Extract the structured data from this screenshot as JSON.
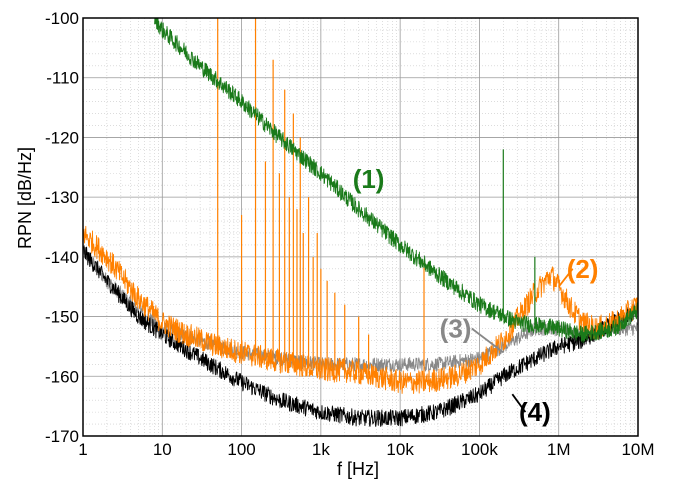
{
  "chart_data": {
    "type": "line",
    "xlabel": "f [Hz]",
    "ylabel": "RPN [dB/Hz]",
    "xscale": "log",
    "xlim": [
      1,
      10000000
    ],
    "ylim": [
      -170,
      -100
    ],
    "grid": true,
    "x_tick_labels": [
      "1",
      "10",
      "100",
      "1k",
      "10k",
      "100k",
      "1M",
      "10M"
    ],
    "y_tick_labels": [
      "-100",
      "-110",
      "-120",
      "-130",
      "-140",
      "-150",
      "-160",
      "-170"
    ],
    "series": [
      {
        "name": "(1)",
        "color": "#1a7a1a",
        "x": [
          8,
          10,
          30,
          100,
          300,
          1000,
          3000,
          10000,
          30000,
          100000,
          300000,
          1000000,
          2000000,
          5000000,
          10000000
        ],
        "y": [
          -100,
          -102,
          -108,
          -114,
          -120,
          -126,
          -132,
          -138,
          -143,
          -148,
          -151,
          -152,
          -153,
          -152,
          -149
        ],
        "spikes": [
          {
            "x": 200000,
            "y": -122
          },
          {
            "x": 500000,
            "y": -140
          }
        ]
      },
      {
        "name": "(2)",
        "color": "#ff8000",
        "x": [
          1,
          2,
          5,
          10,
          20,
          50,
          100,
          200,
          500,
          1000,
          2000,
          5000,
          10000,
          20000,
          50000,
          100000,
          200000,
          500000,
          800000,
          1000000,
          1500000,
          2000000,
          3000000,
          5000000,
          10000000
        ],
        "y": [
          -136,
          -140,
          -147,
          -151,
          -153,
          -155,
          -156,
          -157,
          -158,
          -159,
          -159,
          -160,
          -161,
          -161,
          -160,
          -158,
          -154,
          -146,
          -143,
          -145,
          -149,
          -151,
          -152,
          -151,
          -148
        ],
        "spikes": [
          {
            "x": 50,
            "y": -100
          },
          {
            "x": 100,
            "y": -133
          },
          {
            "x": 150,
            "y": -100
          },
          {
            "x": 200,
            "y": -124
          },
          {
            "x": 250,
            "y": -107
          },
          {
            "x": 300,
            "y": -126
          },
          {
            "x": 350,
            "y": -112
          },
          {
            "x": 400,
            "y": -130
          },
          {
            "x": 450,
            "y": -116
          },
          {
            "x": 500,
            "y": -132
          },
          {
            "x": 550,
            "y": -120
          },
          {
            "x": 600,
            "y": -136
          },
          {
            "x": 700,
            "y": -130
          },
          {
            "x": 800,
            "y": -140
          },
          {
            "x": 900,
            "y": -136
          },
          {
            "x": 1000,
            "y": -142
          },
          {
            "x": 1200,
            "y": -144
          },
          {
            "x": 1500,
            "y": -146
          },
          {
            "x": 2000,
            "y": -148
          },
          {
            "x": 3000,
            "y": -150
          },
          {
            "x": 4000,
            "y": -153
          },
          {
            "x": 20000,
            "y": -141
          }
        ]
      },
      {
        "name": "(3)",
        "color": "#888888",
        "x": [
          1,
          2,
          5,
          10,
          30,
          100,
          300,
          1000,
          3000,
          10000,
          30000,
          100000,
          200000,
          500000,
          1000000,
          2000000,
          5000000,
          10000000
        ],
        "y": [
          -139,
          -144,
          -149,
          -152,
          -154,
          -156,
          -157,
          -158,
          -158,
          -158,
          -158,
          -157,
          -155,
          -152,
          -152,
          -153,
          -152,
          -152
        ]
      },
      {
        "name": "(4)",
        "color": "#000000",
        "x": [
          1,
          2,
          5,
          10,
          30,
          100,
          300,
          1000,
          3000,
          10000,
          30000,
          100000,
          200000,
          500000,
          1000000,
          2000000,
          5000000,
          10000000
        ],
        "y": [
          -139,
          -144,
          -150,
          -153,
          -157,
          -161,
          -164,
          -166,
          -167,
          -167,
          -166,
          -163,
          -160,
          -157,
          -155,
          -154,
          -151,
          -149
        ]
      }
    ],
    "annotations": [
      {
        "text": "(1)",
        "color": "#1a7a1a",
        "x": 4000,
        "y": -127
      },
      {
        "text": "(2)",
        "color": "#ff8000",
        "x": 2000000,
        "y": -142
      },
      {
        "text": "(3)",
        "color": "#888888",
        "x": 50000,
        "y": -152
      },
      {
        "text": "(4)",
        "color": "#000000",
        "x": 500000,
        "y": -166
      }
    ]
  }
}
